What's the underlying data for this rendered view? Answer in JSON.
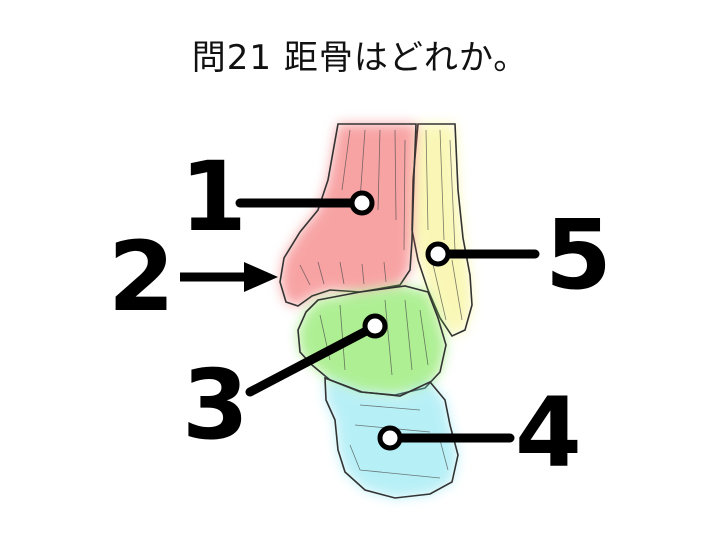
{
  "question": {
    "text": "問21 距骨はどれか。"
  },
  "colors": {
    "bone_1": "#f2585a",
    "bone_3": "#6de23c",
    "bone_4": "#7ee3f0",
    "bone_5": "#f6f27c",
    "line": "#000000"
  },
  "labels": [
    {
      "id": "1",
      "text": "1"
    },
    {
      "id": "2",
      "text": "2"
    },
    {
      "id": "3",
      "text": "3"
    },
    {
      "id": "4",
      "text": "4"
    },
    {
      "id": "5",
      "text": "5"
    }
  ]
}
